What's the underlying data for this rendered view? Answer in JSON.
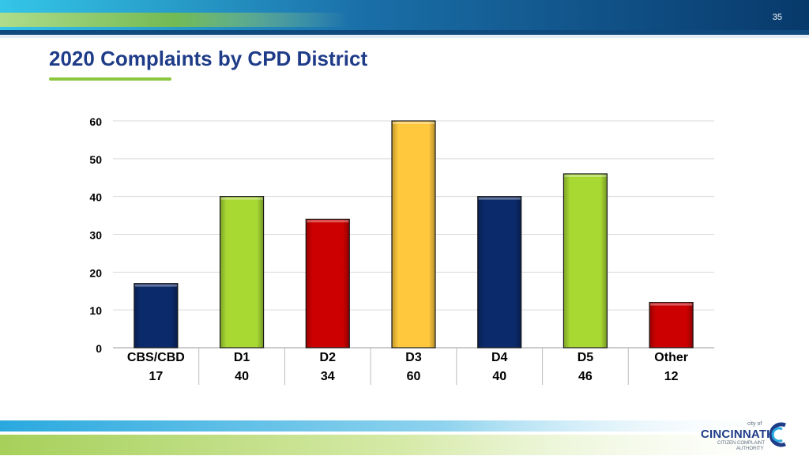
{
  "slide": {
    "page_number": "35",
    "title": "2020 Complaints by CPD District"
  },
  "logo": {
    "small": "city of",
    "main": "CINCINNATI",
    "sub1": "CITIZEN COMPLAINT",
    "sub2": "AUTHORITY"
  },
  "chart_data": {
    "type": "bar",
    "title": "2020 Complaints by CPD District",
    "xlabel": "",
    "ylabel": "",
    "categories": [
      "CBS/CBD",
      "D1",
      "D2",
      "D3",
      "D4",
      "D5",
      "Other"
    ],
    "values": [
      17,
      40,
      34,
      60,
      40,
      46,
      12
    ],
    "data_table": [
      "17",
      "40",
      "34",
      "60",
      "40",
      "46",
      "12"
    ],
    "colors": [
      "#0b2a6b",
      "#a8d933",
      "#cc0000",
      "#ffc83d",
      "#0b2a6b",
      "#a8d933",
      "#cc0000"
    ],
    "ylim": [
      0,
      60
    ],
    "yticks": [
      0,
      10,
      20,
      30,
      40,
      50,
      60
    ],
    "grid": true,
    "legend": "none"
  }
}
